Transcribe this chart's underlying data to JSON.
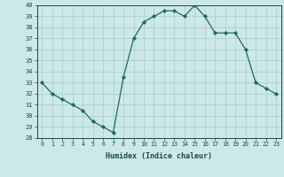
{
  "x": [
    0,
    1,
    2,
    3,
    4,
    5,
    6,
    7,
    8,
    9,
    10,
    11,
    12,
    13,
    14,
    15,
    16,
    17,
    18,
    19,
    20,
    21,
    22,
    23
  ],
  "y": [
    33,
    32,
    31.5,
    31,
    30.5,
    29.5,
    29,
    28.5,
    33.5,
    37,
    38.5,
    39,
    39.5,
    39.5,
    39,
    40,
    39,
    37.5,
    37.5,
    37.5,
    36,
    33,
    32.5,
    32
  ],
  "xlabel": "Humidex (Indice chaleur)",
  "ylim": [
    28,
    40
  ],
  "xlim": [
    -0.5,
    23.5
  ],
  "yticks": [
    28,
    29,
    30,
    31,
    32,
    33,
    34,
    35,
    36,
    37,
    38,
    39,
    40
  ],
  "xticks": [
    0,
    1,
    2,
    3,
    4,
    5,
    6,
    7,
    8,
    9,
    10,
    11,
    12,
    13,
    14,
    15,
    16,
    17,
    18,
    19,
    20,
    21,
    22,
    23
  ],
  "line_color": "#1a6b5f",
  "marker_color": "#1a6b5f",
  "bg_color": "#cce8e8",
  "grid_color": "#aacccc",
  "tick_color": "#1a4a44",
  "label_color": "#1a4a44"
}
